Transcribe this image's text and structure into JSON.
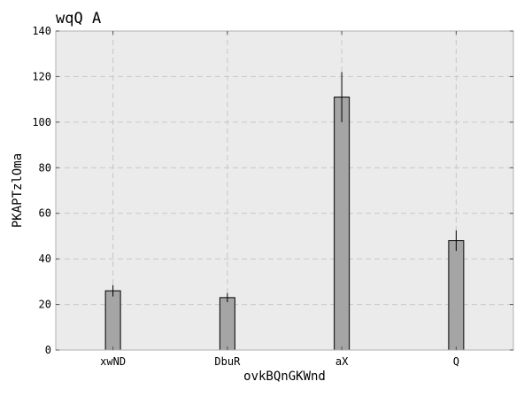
{
  "chart_data": {
    "type": "bar",
    "title": "wqQ A",
    "xlabel": "ovkBQnGKWnd",
    "ylabel": "PKAPTzlOma",
    "categories": [
      "xwND",
      "DbuR",
      "aX",
      "Q"
    ],
    "values": [
      26,
      23,
      111,
      48
    ],
    "errors": [
      2.5,
      2.0,
      11,
      4.5
    ],
    "ylim": [
      0,
      140
    ],
    "yticks": [
      0,
      20,
      40,
      60,
      80,
      100,
      120,
      140
    ],
    "grid": true,
    "legend": "none",
    "colors": {
      "bar_fill": "#a5a5a5",
      "bar_edge": "#000000",
      "plot_background": "#ebebeb",
      "grid": "#c8c8c8",
      "axes": "#b0b0b0",
      "error_bar": "#000000"
    }
  }
}
